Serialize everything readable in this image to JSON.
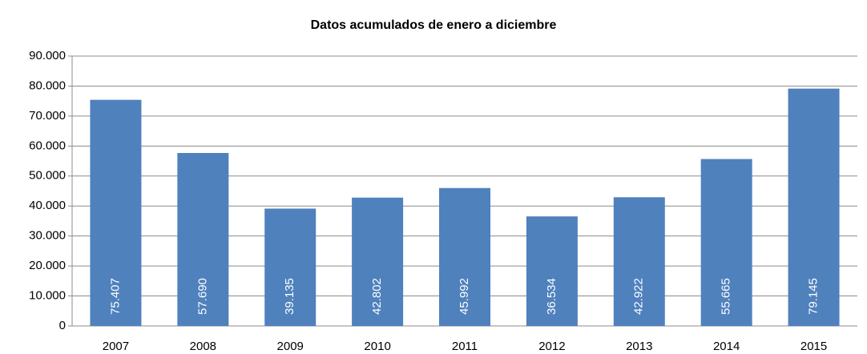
{
  "chart_data": {
    "type": "bar",
    "title": "Datos acumulados de enero a diciembre",
    "categories": [
      "2007",
      "2008",
      "2009",
      "2010",
      "2011",
      "2012",
      "2013",
      "2014",
      "2015"
    ],
    "values": [
      75407,
      57690,
      39135,
      42802,
      45992,
      36534,
      42922,
      55665,
      79145
    ],
    "value_labels": [
      "75.407",
      "57.690",
      "39.135",
      "42.802",
      "45.992",
      "36.534",
      "42.922",
      "55.665",
      "79.145"
    ],
    "color": "#4f81bd",
    "ylim": [
      0,
      90000
    ],
    "yticks": [
      0,
      {
        "value": 10000,
        "label": "10.000"
      },
      {
        "value": 20000,
        "label": "20.000"
      },
      {
        "value": 30000,
        "label": "30.000"
      },
      {
        "value": 40000,
        "label": "40.000"
      },
      {
        "value": 50000,
        "label": "50.000"
      },
      {
        "value": 60000,
        "label": "60.000"
      },
      {
        "value": 70000,
        "label": "70.000"
      },
      {
        "value": 80000,
        "label": "80.000"
      },
      {
        "value": 90000,
        "label": "90.000"
      }
    ],
    "grid": true
  }
}
